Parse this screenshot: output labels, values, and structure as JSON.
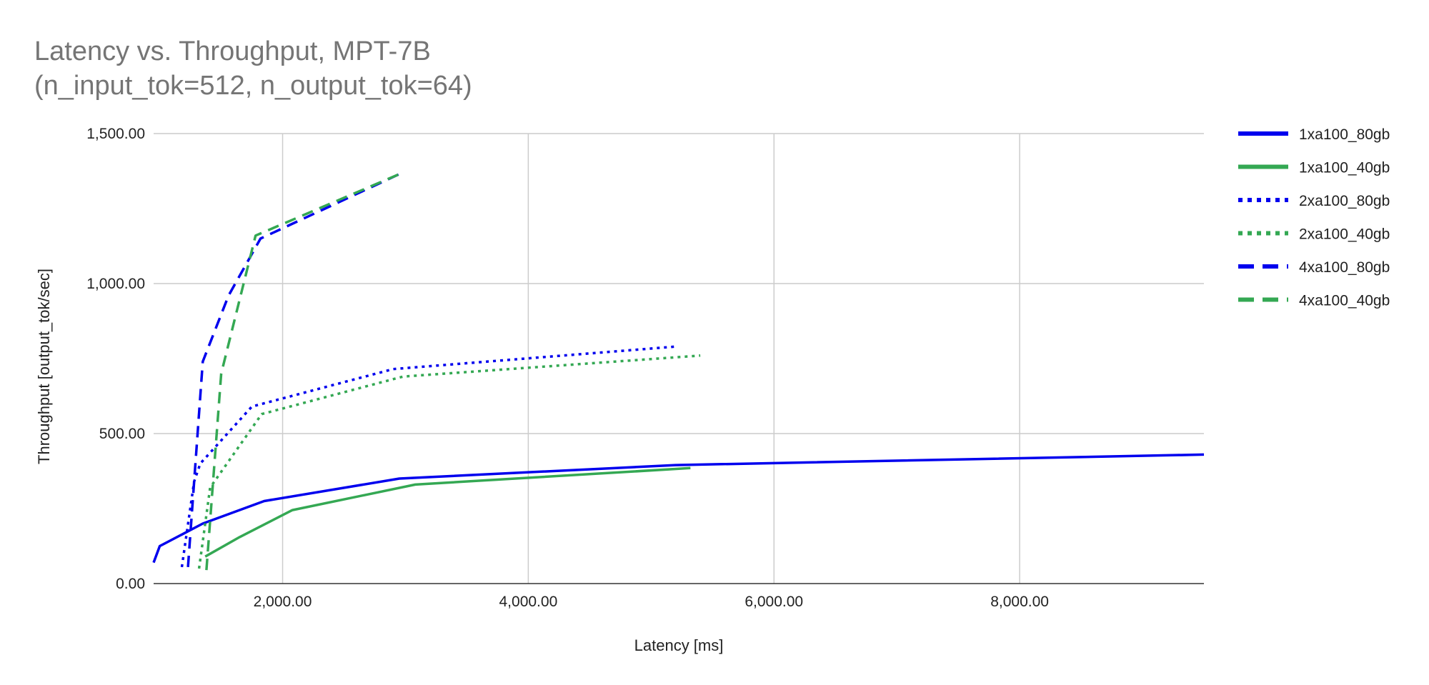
{
  "chart_data": {
    "type": "line",
    "title_lines": [
      "Latency vs. Throughput, MPT-7B",
      "(n_input_tok=512, n_output_tok=64)"
    ],
    "xlabel": "Latency [ms]",
    "ylabel": "Throughput [output_tok/sec]",
    "xlim": [
      950,
      9500
    ],
    "ylim": [
      0,
      1500
    ],
    "x_ticks": [
      2000,
      4000,
      6000,
      8000
    ],
    "x_tick_labels": [
      "2,000.00",
      "4,000.00",
      "6,000.00",
      "8,000.00"
    ],
    "y_ticks": [
      0,
      500,
      1000,
      1500
    ],
    "y_tick_labels": [
      "0.00",
      "500.00",
      "1,000.00",
      "1,500.00"
    ],
    "grid": true,
    "legend_position": "right",
    "series": [
      {
        "name": "1xa100_80gb",
        "color": "#0000ee",
        "style": "solid",
        "points": [
          [
            950,
            70
          ],
          [
            1000,
            125
          ],
          [
            1350,
            200
          ],
          [
            1850,
            275
          ],
          [
            2950,
            350
          ],
          [
            5200,
            395
          ],
          [
            9500,
            430
          ]
        ]
      },
      {
        "name": "1xa100_40gb",
        "color": "#34a853",
        "style": "solid",
        "points": [
          [
            1370,
            90
          ],
          [
            1650,
            155
          ],
          [
            2080,
            245
          ],
          [
            3080,
            330
          ],
          [
            5320,
            385
          ]
        ]
      },
      {
        "name": "2xa100_80gb",
        "color": "#0000ee",
        "style": "dotted",
        "points": [
          [
            1180,
            55
          ],
          [
            1280,
            340
          ],
          [
            1330,
            400
          ],
          [
            1750,
            590
          ],
          [
            2900,
            715
          ],
          [
            5200,
            790
          ]
        ]
      },
      {
        "name": "2xa100_40gb",
        "color": "#34a853",
        "style": "dotted",
        "points": [
          [
            1320,
            50
          ],
          [
            1410,
            320
          ],
          [
            1830,
            565
          ],
          [
            2980,
            690
          ],
          [
            5400,
            760
          ]
        ]
      },
      {
        "name": "4xa100_80gb",
        "color": "#0000ee",
        "style": "dashed",
        "points": [
          [
            1230,
            55
          ],
          [
            1350,
            740
          ],
          [
            1560,
            960
          ],
          [
            1820,
            1150
          ],
          [
            2950,
            1365
          ]
        ]
      },
      {
        "name": "4xa100_40gb",
        "color": "#34a853",
        "style": "dashed",
        "points": [
          [
            1380,
            45
          ],
          [
            1500,
            700
          ],
          [
            1780,
            1160
          ],
          [
            2980,
            1370
          ]
        ]
      }
    ]
  }
}
